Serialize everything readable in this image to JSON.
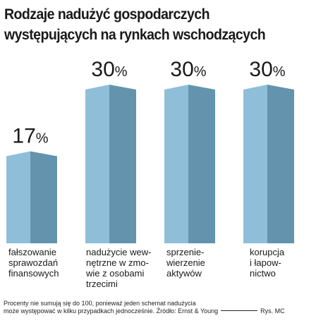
{
  "title_lines": [
    "Rodzaje nadużyć gospodarczych",
    "występujących na rynkach wschodzących"
  ],
  "chart_data": {
    "type": "bar",
    "title": "Rodzaje nadużyć gospodarczych występujących na rynkach wschodzących",
    "categories": [
      [
        "fałszowanie",
        "sprawozdań",
        "finansowych"
      ],
      [
        "nadużycie wew-",
        "nętrzne w zmo-",
        "wie z osobami",
        "trzecimi"
      ],
      [
        "sprzenie-",
        "wierzenie",
        "aktywów"
      ],
      [
        "korupcja",
        "i łapow-",
        "nictwo"
      ]
    ],
    "values": [
      17,
      30,
      30,
      30
    ],
    "value_suffix": "%",
    "ylim": [
      0,
      30
    ]
  },
  "colors": {
    "bar_front": "#8fbfd8",
    "bar_side": "#6494ad",
    "bar_top": "#b9d8e8"
  },
  "footnote": {
    "line1": "Procenty nie sumują się do 100, ponieważ jeden schemat nadużycia",
    "line2": "może występować w kilku przypadkach jednocześnie. Źródło: Ernst & Young",
    "credit": "Rys. MC"
  }
}
